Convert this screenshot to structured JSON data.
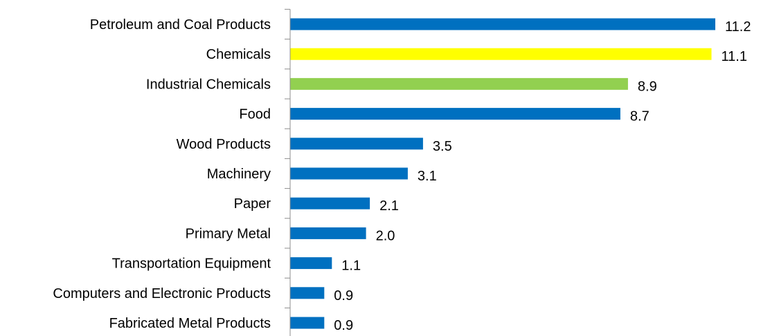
{
  "chart_data": {
    "type": "bar",
    "orientation": "horizontal",
    "title": "",
    "xlabel": "",
    "ylabel": "",
    "xlim": [
      0,
      11.2
    ],
    "grid": false,
    "legend": "none",
    "categories": [
      "Petroleum and Coal Products",
      "Chemicals",
      "Industrial Chemicals",
      "Food",
      "Wood Products",
      "Machinery",
      "Paper",
      "Primary Metal",
      "Transportation Equipment",
      "Computers and Electronic Products",
      "Fabricated Metal Products"
    ],
    "values": [
      11.2,
      11.1,
      8.9,
      8.7,
      3.5,
      3.1,
      2.1,
      2.0,
      1.1,
      0.9,
      0.9
    ],
    "value_labels": [
      "11.2",
      "11.1",
      "8.9",
      "8.7",
      "3.5",
      "3.1",
      "2.1",
      "2.0",
      "1.1",
      "0.9",
      "0.9"
    ],
    "bar_colors": [
      "#0070c0",
      "#ffff00",
      "#92d050",
      "#0070c0",
      "#0070c0",
      "#0070c0",
      "#0070c0",
      "#0070c0",
      "#0070c0",
      "#0070c0",
      "#0070c0"
    ]
  }
}
